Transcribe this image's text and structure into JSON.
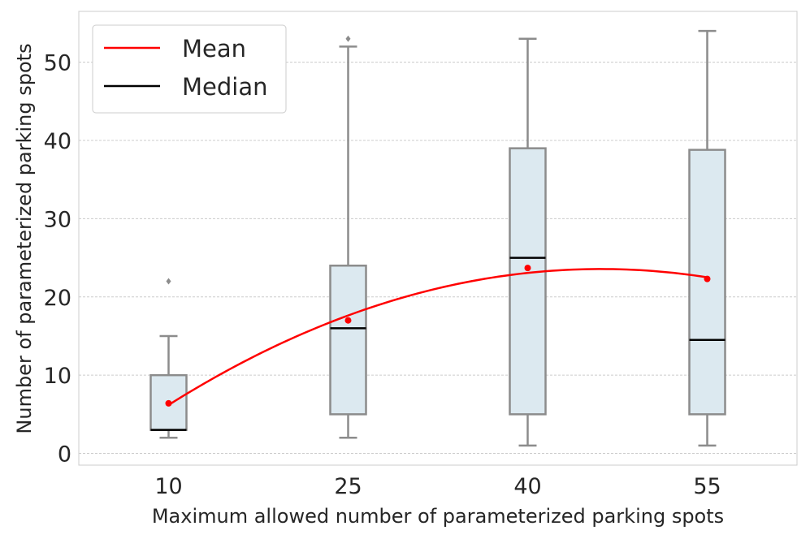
{
  "chart_data": {
    "type": "box",
    "xlabel": "Maximum allowed number of parameterized parking spots",
    "ylabel": "Number of parameterized parking spots",
    "categories": [
      "10",
      "25",
      "40",
      "55"
    ],
    "ylim": [
      -1.5,
      56.5
    ],
    "yticks": [
      "0",
      "10",
      "20",
      "30",
      "40",
      "50"
    ],
    "grid": "horizontal dashed",
    "legend": {
      "placement": "top-left",
      "entries": [
        "Mean",
        "Median"
      ]
    },
    "boxes": [
      {
        "category": "10",
        "whisker_low": 2,
        "q1": 3,
        "median": 3,
        "q3": 10,
        "whisker_high": 15,
        "outliers": [
          22
        ],
        "mean": 6.4
      },
      {
        "category": "25",
        "whisker_low": 2,
        "q1": 5,
        "median": 16,
        "q3": 24,
        "whisker_high": 52,
        "outliers": [
          53
        ],
        "mean": 17
      },
      {
        "category": "40",
        "whisker_low": 1,
        "q1": 5,
        "median": 25,
        "q3": 39,
        "whisker_high": 53,
        "outliers": [],
        "mean": 23.7
      },
      {
        "category": "55",
        "whisker_low": 1,
        "q1": 5,
        "median": 14.5,
        "q3": 38.8,
        "whisker_high": 54,
        "outliers": [],
        "mean": 22.3
      }
    ],
    "colors": {
      "mean": "#ff0000",
      "median": "#000000",
      "box_fill": "#dce9f0",
      "box_edge": "#8c8c8c"
    }
  }
}
